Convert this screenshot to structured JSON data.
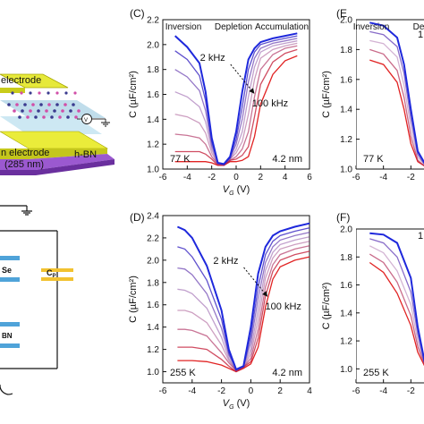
{
  "left_fragment": {
    "labels": [
      "electrode",
      "h-BN",
      "n electrode",
      "(285 nm)",
      "V",
      "C",
      "Se",
      "BN",
      "P"
    ]
  },
  "chart_data": [
    {
      "id": "C",
      "panel_label": "(C)",
      "type": "line",
      "xlabel": "VG (V)",
      "xlabel_main": "V",
      "xlabel_sub": "G",
      "xlabel_unit": " (V)",
      "ylabel": "C (µF/cm²)",
      "xlim": [
        -6,
        6
      ],
      "ylim": [
        1.0,
        2.2
      ],
      "xticks": [
        "-6",
        "-4",
        "-2",
        "0",
        "2",
        "4",
        "6"
      ],
      "yticks": [
        "1.0",
        "1.2",
        "1.4",
        "1.6",
        "1.8",
        "2.0",
        "2.2"
      ],
      "regions": [
        "Inversion",
        "Depletion",
        "Accumulation"
      ],
      "freq_low": "2 kHz",
      "freq_high": "100 kHz",
      "temperature": "77 K",
      "thickness": "4.2 nm",
      "x": [
        -5.0,
        -4.0,
        -3.0,
        -2.5,
        -2.0,
        -1.5,
        -1.0,
        -0.5,
        0.0,
        0.5,
        1.0,
        1.5,
        2.0,
        3.0,
        4.0,
        5.0
      ],
      "series": [
        {
          "values": [
            2.07,
            1.98,
            1.85,
            1.62,
            1.25,
            1.05,
            1.04,
            1.1,
            1.3,
            1.62,
            1.88,
            1.97,
            2.02,
            2.05,
            2.07,
            2.09
          ]
        },
        {
          "values": [
            1.95,
            1.88,
            1.75,
            1.55,
            1.22,
            1.05,
            1.04,
            1.09,
            1.24,
            1.5,
            1.8,
            1.94,
            2.0,
            2.03,
            2.05,
            2.07
          ]
        },
        {
          "values": [
            1.8,
            1.74,
            1.63,
            1.47,
            1.19,
            1.05,
            1.04,
            1.09,
            1.2,
            1.4,
            1.7,
            1.89,
            1.97,
            2.01,
            2.03,
            2.05
          ]
        },
        {
          "values": [
            1.62,
            1.58,
            1.5,
            1.38,
            1.16,
            1.04,
            1.04,
            1.08,
            1.16,
            1.3,
            1.58,
            1.82,
            1.94,
            1.99,
            2.01,
            2.03
          ]
        },
        {
          "values": [
            1.44,
            1.42,
            1.37,
            1.29,
            1.13,
            1.04,
            1.03,
            1.08,
            1.13,
            1.22,
            1.44,
            1.72,
            1.89,
            1.96,
            1.99,
            2.01
          ]
        },
        {
          "values": [
            1.28,
            1.27,
            1.25,
            1.2,
            1.1,
            1.04,
            1.03,
            1.07,
            1.1,
            1.16,
            1.3,
            1.58,
            1.8,
            1.92,
            1.97,
            1.99
          ]
        },
        {
          "values": [
            1.14,
            1.14,
            1.14,
            1.12,
            1.08,
            1.03,
            1.03,
            1.07,
            1.08,
            1.11,
            1.18,
            1.42,
            1.68,
            1.86,
            1.93,
            1.96
          ]
        },
        {
          "values": [
            1.06,
            1.06,
            1.06,
            1.06,
            1.05,
            1.03,
            1.03,
            1.06,
            1.06,
            1.07,
            1.1,
            1.26,
            1.52,
            1.76,
            1.87,
            1.91
          ]
        }
      ]
    },
    {
      "id": "D",
      "panel_label": "(D)",
      "type": "line",
      "xlabel": "VG (V)",
      "xlabel_main": "V",
      "xlabel_sub": "G",
      "xlabel_unit": " (V)",
      "ylabel": "C (µF/cm²)",
      "xlim": [
        -6,
        4
      ],
      "ylim": [
        0.9,
        2.4
      ],
      "xticks": [
        "-6",
        "-4",
        "-2",
        "0",
        "2",
        "4"
      ],
      "yticks": [
        "1.0",
        "1.2",
        "1.4",
        "1.6",
        "1.8",
        "2.0",
        "2.2",
        "2.4"
      ],
      "freq_low": "2 kHz",
      "freq_high": "100 kHz",
      "temperature": "255 K",
      "thickness": "4.2 nm",
      "x": [
        -5.0,
        -4.5,
        -4.0,
        -3.0,
        -2.0,
        -1.5,
        -1.0,
        -0.5,
        0.0,
        0.5,
        1.0,
        1.5,
        2.0,
        3.0,
        4.0
      ],
      "series": [
        {
          "values": [
            2.3,
            2.27,
            2.2,
            1.95,
            1.55,
            1.2,
            1.02,
            1.05,
            1.4,
            1.88,
            2.12,
            2.22,
            2.26,
            2.3,
            2.33
          ]
        },
        {
          "values": [
            2.12,
            2.1,
            2.03,
            1.82,
            1.47,
            1.17,
            1.02,
            1.05,
            1.32,
            1.76,
            2.05,
            2.17,
            2.22,
            2.26,
            2.29
          ]
        },
        {
          "values": [
            1.93,
            1.92,
            1.87,
            1.7,
            1.39,
            1.15,
            1.02,
            1.05,
            1.26,
            1.66,
            1.98,
            2.12,
            2.18,
            2.22,
            2.25
          ]
        },
        {
          "values": [
            1.74,
            1.73,
            1.7,
            1.57,
            1.31,
            1.12,
            1.01,
            1.05,
            1.2,
            1.56,
            1.91,
            2.07,
            2.14,
            2.18,
            2.21
          ]
        },
        {
          "values": [
            1.55,
            1.55,
            1.53,
            1.44,
            1.24,
            1.1,
            1.01,
            1.04,
            1.16,
            1.47,
            1.84,
            2.02,
            2.1,
            2.14,
            2.17
          ]
        },
        {
          "values": [
            1.38,
            1.38,
            1.37,
            1.32,
            1.17,
            1.08,
            1.01,
            1.04,
            1.12,
            1.38,
            1.76,
            1.96,
            2.05,
            2.1,
            2.13
          ]
        },
        {
          "values": [
            1.22,
            1.22,
            1.22,
            1.2,
            1.11,
            1.05,
            1.0,
            1.04,
            1.09,
            1.3,
            1.68,
            1.9,
            2.0,
            2.05,
            2.08
          ]
        },
        {
          "values": [
            1.1,
            1.1,
            1.1,
            1.09,
            1.06,
            1.03,
            1.0,
            1.03,
            1.07,
            1.22,
            1.58,
            1.83,
            1.94,
            2.0,
            2.03
          ]
        }
      ]
    },
    {
      "id": "E",
      "panel_label": "(E",
      "type": "line",
      "ylabel": "C (µF/cm²)",
      "xlim": [
        -6,
        6
      ],
      "ylim": [
        1.0,
        2.0
      ],
      "xticks": [
        "-6",
        "-4",
        "-2"
      ],
      "yticks": [
        "1.0",
        "1.2",
        "1.4",
        "1.6",
        "1.8",
        "2.0"
      ],
      "regions": [
        "Inversion",
        "De"
      ],
      "freq_partial": "1",
      "temperature": "77 K",
      "x": [
        -5.0,
        -4.0,
        -3.0,
        -2.5,
        -2.0,
        -1.5,
        -1.0
      ],
      "series": [
        {
          "values": [
            1.98,
            1.96,
            1.88,
            1.7,
            1.4,
            1.12,
            1.04
          ]
        },
        {
          "values": [
            1.92,
            1.9,
            1.82,
            1.64,
            1.34,
            1.1,
            1.03
          ]
        },
        {
          "values": [
            1.86,
            1.84,
            1.75,
            1.56,
            1.28,
            1.08,
            1.03
          ]
        },
        {
          "values": [
            1.8,
            1.77,
            1.66,
            1.48,
            1.22,
            1.06,
            1.02
          ]
        },
        {
          "values": [
            1.73,
            1.7,
            1.58,
            1.4,
            1.17,
            1.05,
            1.02
          ]
        }
      ]
    },
    {
      "id": "F",
      "panel_label": "(F)",
      "type": "line",
      "ylabel": "C (µF/cm²)",
      "xlim": [
        -6,
        6
      ],
      "ylim": [
        0.9,
        2.0
      ],
      "xticks": [
        "-6",
        "-4",
        "-2"
      ],
      "yticks": [
        "1.0",
        "1.2",
        "1.4",
        "1.6",
        "1.8",
        "2.0"
      ],
      "freq_partial": "1",
      "temperature": "255 K",
      "x": [
        -5.0,
        -4.0,
        -3.0,
        -2.0,
        -1.5,
        -1.0
      ],
      "series": [
        {
          "values": [
            1.97,
            1.96,
            1.9,
            1.65,
            1.3,
            1.05
          ]
        },
        {
          "values": [
            1.93,
            1.9,
            1.8,
            1.55,
            1.25,
            1.04
          ]
        },
        {
          "values": [
            1.88,
            1.83,
            1.7,
            1.46,
            1.2,
            1.03
          ]
        },
        {
          "values": [
            1.82,
            1.76,
            1.62,
            1.38,
            1.16,
            1.03
          ]
        },
        {
          "values": [
            1.76,
            1.69,
            1.54,
            1.31,
            1.12,
            1.02
          ]
        }
      ]
    }
  ]
}
